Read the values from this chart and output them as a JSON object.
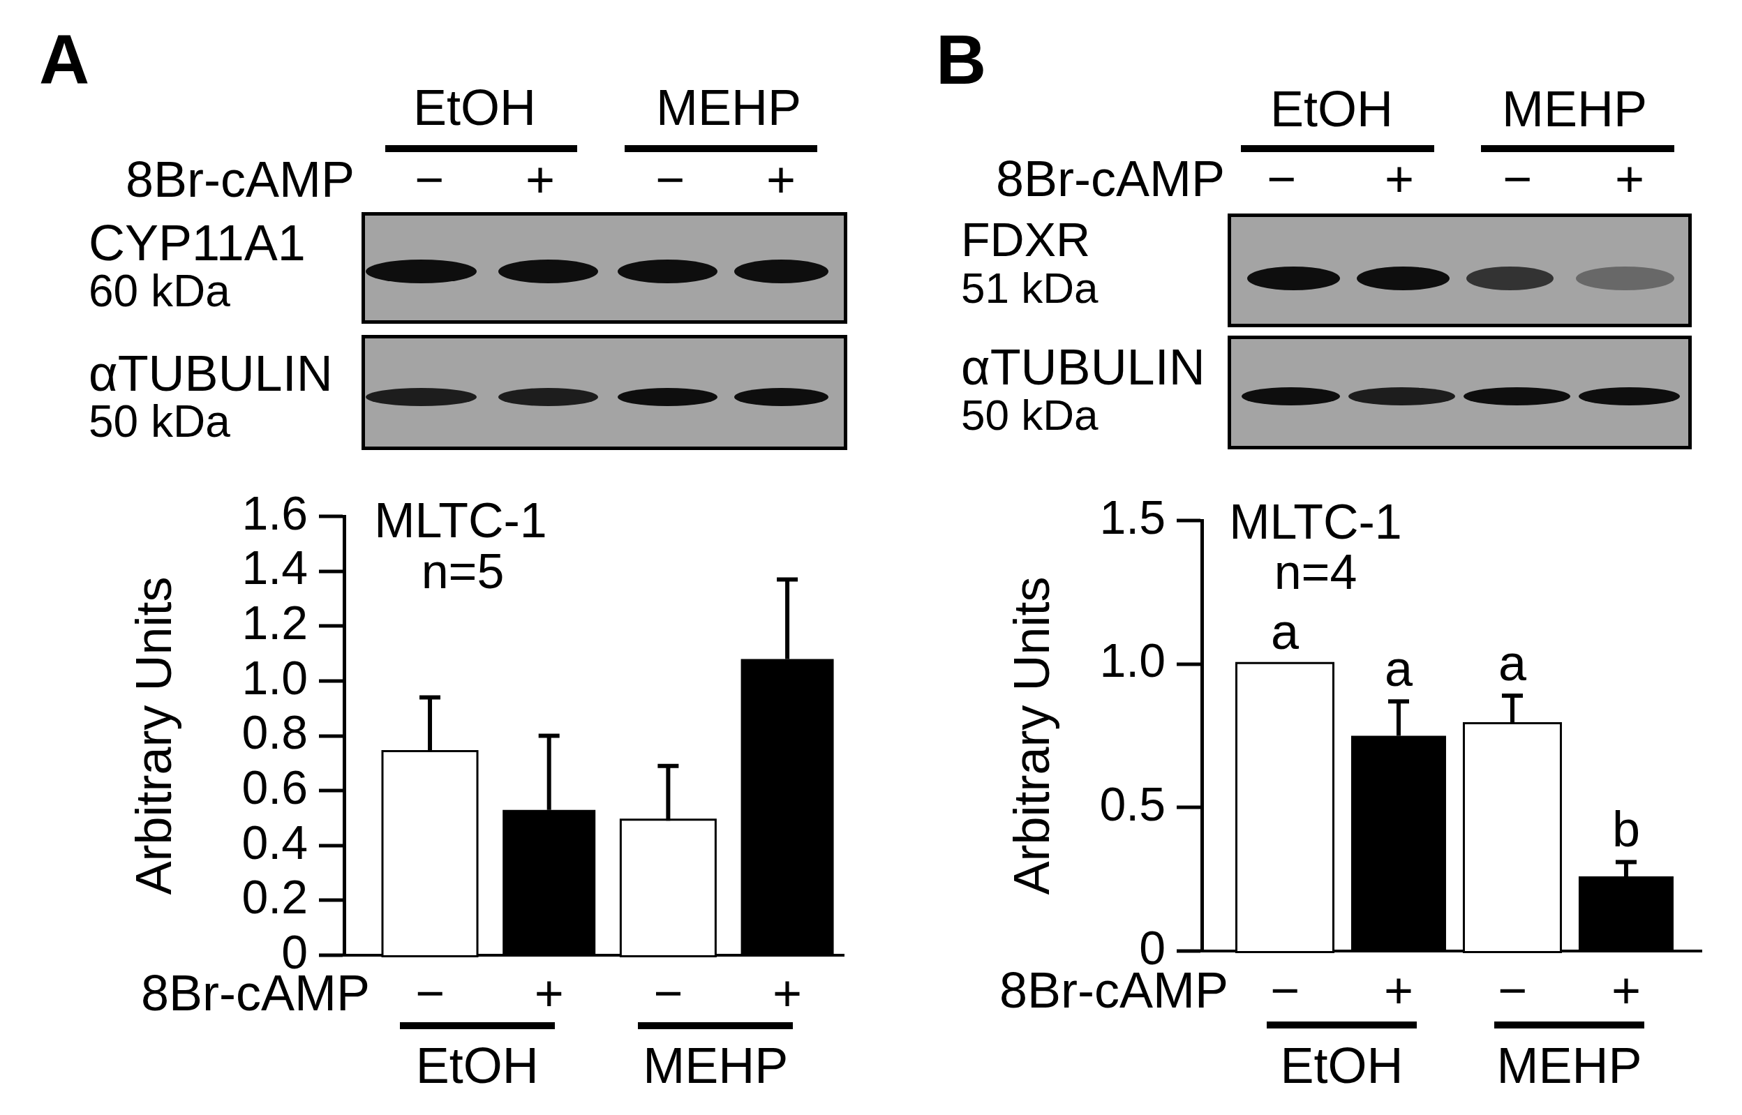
{
  "chart_data": [
    {
      "type": "bar",
      "title": "A",
      "ylabel": "Arbitrary Units",
      "xlabel": "8Br-cAMP",
      "categories": [
        "−",
        "+",
        "−",
        "+"
      ],
      "values": [
        0.74,
        0.53,
        0.49,
        1.08
      ],
      "colors": [
        "#ffffff",
        "#000000",
        "#ffffff",
        "#000000"
      ],
      "errors": [
        [
          0.74,
          0.94
        ],
        [
          0.53,
          0.8
        ],
        [
          0.49,
          0.69
        ],
        [
          1.08,
          1.37
        ]
      ],
      "ylim": [
        0,
        1.6
      ],
      "yticks": [
        0,
        0.2,
        0.4,
        0.6,
        0.8,
        {
          "value": 1,
          "label": "1.0"
        },
        1.2,
        1.4,
        1.6
      ],
      "annotations": [
        "MLTC-1",
        "n=5",
        "EtOH",
        "MEHP",
        "EtOH",
        "MEHP",
        "8Br-cAMP",
        "−",
        "+",
        "−",
        "+",
        "CYP11A1",
        "60 kDa",
        "αTUBULIN",
        "50 kDa"
      ]
    },
    {
      "type": "bar",
      "title": "B",
      "ylabel": "Arbitrary Units",
      "xlabel": "8Br-cAMP",
      "categories": [
        "−",
        "+",
        "−",
        "+"
      ],
      "values": [
        1,
        0.75,
        0.79,
        0.26
      ],
      "colors": [
        "#ffffff",
        "#000000",
        "#ffffff",
        "#000000"
      ],
      "errors": [
        null,
        [
          0.75,
          0.87
        ],
        [
          0.79,
          0.89
        ],
        [
          0.26,
          0.31
        ]
      ],
      "value_labels": [
        "a",
        "a",
        "a",
        "b"
      ],
      "ylim": [
        0,
        1.5
      ],
      "yticks": [
        0,
        0.5,
        {
          "value": 1,
          "label": "1.0"
        },
        1.5
      ],
      "annotations": [
        "MLTC-1",
        "n=4",
        "EtOH",
        "MEHP",
        "EtOH",
        "MEHP",
        "8Br-cAMP",
        "−",
        "+",
        "−",
        "+",
        "FDXR",
        "51 kDa",
        "αTUBULIN",
        "50 kDa"
      ]
    }
  ]
}
